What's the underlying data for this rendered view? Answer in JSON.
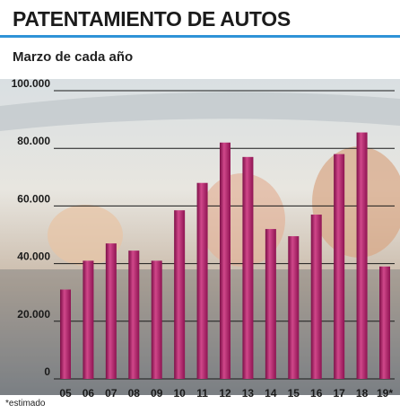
{
  "header": {
    "title": "PATENTAMIENTO DE AUTOS",
    "subtitle": "Marzo de cada año"
  },
  "footnote": "*estimado",
  "colors": {
    "accent_rule": "#2f93d7",
    "bar": "#a3155e",
    "bar_highlight": "#d0478a",
    "gridline": "#1a1a1a"
  },
  "chart_data": {
    "type": "bar",
    "categories": [
      "05",
      "06",
      "07",
      "08",
      "09",
      "10",
      "11",
      "12",
      "13",
      "14",
      "15",
      "16",
      "17",
      "18",
      "19*"
    ],
    "values": [
      31000,
      41000,
      47000,
      44500,
      41000,
      58500,
      68000,
      82000,
      77000,
      52000,
      49500,
      57000,
      78000,
      85500,
      39000
    ],
    "ylim": [
      0,
      100000
    ],
    "yticks": [
      0,
      20000,
      40000,
      60000,
      80000,
      100000
    ],
    "ytick_labels": [
      "0",
      "20.000",
      "40.000",
      "60.000",
      "80.000",
      "100.000"
    ],
    "grid": true,
    "background": "photo of children in the back seat of a car"
  }
}
